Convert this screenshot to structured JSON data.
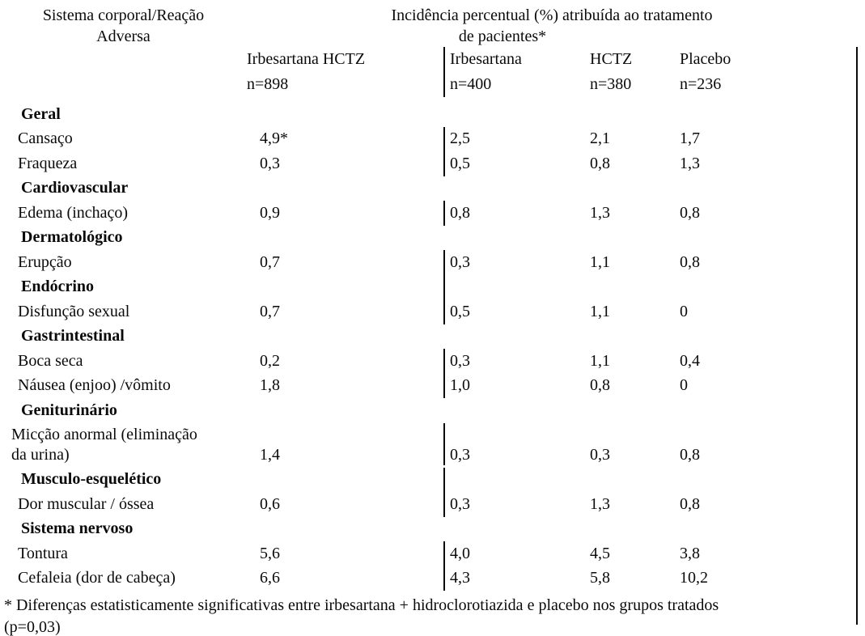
{
  "table": {
    "row_header_title": "Sistema corporal/Reação\nAdversa",
    "span_title": {
      "line1": "Incidência percentual (%) atribuída ao tratamento",
      "line2": "de pacientes*"
    },
    "columns": [
      {
        "label": "Irbesartana HCTZ",
        "n": "n=898"
      },
      {
        "label": "Irbesartana",
        "n": "n=400"
      },
      {
        "label": "HCTZ",
        "n": "n=380"
      },
      {
        "label": "Placebo",
        "n": "n=236"
      }
    ],
    "rows": [
      {
        "type": "section",
        "label": "Geral",
        "divider": false
      },
      {
        "type": "data",
        "label": "Cansaço",
        "values": [
          "4,9*",
          "2,5",
          "2,1",
          "1,7"
        ],
        "divider": true
      },
      {
        "type": "data",
        "label": "Fraqueza",
        "values": [
          "0,3",
          "0,5",
          "0,8",
          "1,3"
        ],
        "divider": true
      },
      {
        "type": "section",
        "label": "Cardiovascular",
        "divider": false
      },
      {
        "type": "data",
        "label": "Edema (inchaço)",
        "values": [
          "0,9",
          "0,8",
          "1,3",
          "0,8"
        ],
        "divider": true
      },
      {
        "type": "section",
        "label": "Dermatológico",
        "divider": false
      },
      {
        "type": "data",
        "label": "Erupção",
        "values": [
          "0,7",
          "0,3",
          "1,1",
          "0,8"
        ],
        "divider": true
      },
      {
        "type": "section",
        "label": "Endócrino",
        "divider": true
      },
      {
        "type": "data",
        "label": "Disfunção sexual",
        "values": [
          "0,7",
          "0,5",
          "1,1",
          "0"
        ],
        "divider": true
      },
      {
        "type": "section",
        "label": "Gastrintestinal",
        "divider": false
      },
      {
        "type": "data",
        "label": "Boca seca",
        "values": [
          "0,2",
          "0,3",
          "1,1",
          "0,4"
        ],
        "divider": true
      },
      {
        "type": "data",
        "label": "Náusea (enjoo) /vômito",
        "values": [
          "1,8",
          "1,0",
          "0,8",
          "0"
        ],
        "divider": true
      },
      {
        "type": "section",
        "label": "Geniturinário",
        "divider": false
      },
      {
        "type": "data",
        "label": "Micção anormal (eliminação\nda urina)",
        "values": [
          "1,4",
          "0,3",
          "0,3",
          "0,8"
        ],
        "divider": true,
        "two_line": true
      },
      {
        "type": "section",
        "label": "Musculo-esquelético",
        "divider": true
      },
      {
        "type": "data",
        "label": "Dor muscular / óssea",
        "values": [
          "0,6",
          "0,3",
          "1,3",
          "0,8"
        ],
        "divider": true
      },
      {
        "type": "section",
        "label": "Sistema nervoso",
        "divider": false
      },
      {
        "type": "data",
        "label": "Tontura",
        "values": [
          "5,6",
          "4,0",
          "4,5",
          "3,8"
        ],
        "divider": true
      },
      {
        "type": "data",
        "label": "Cefaleia (dor de cabeça)",
        "values": [
          "6,6",
          "4,3",
          "5,8",
          "10,2"
        ],
        "divider": true
      }
    ],
    "footnote": "* Diferenças estatisticamente significativas entre irbesartana + hidroclorotiazida e placebo nos grupos tratados\n(p=0,03)"
  }
}
